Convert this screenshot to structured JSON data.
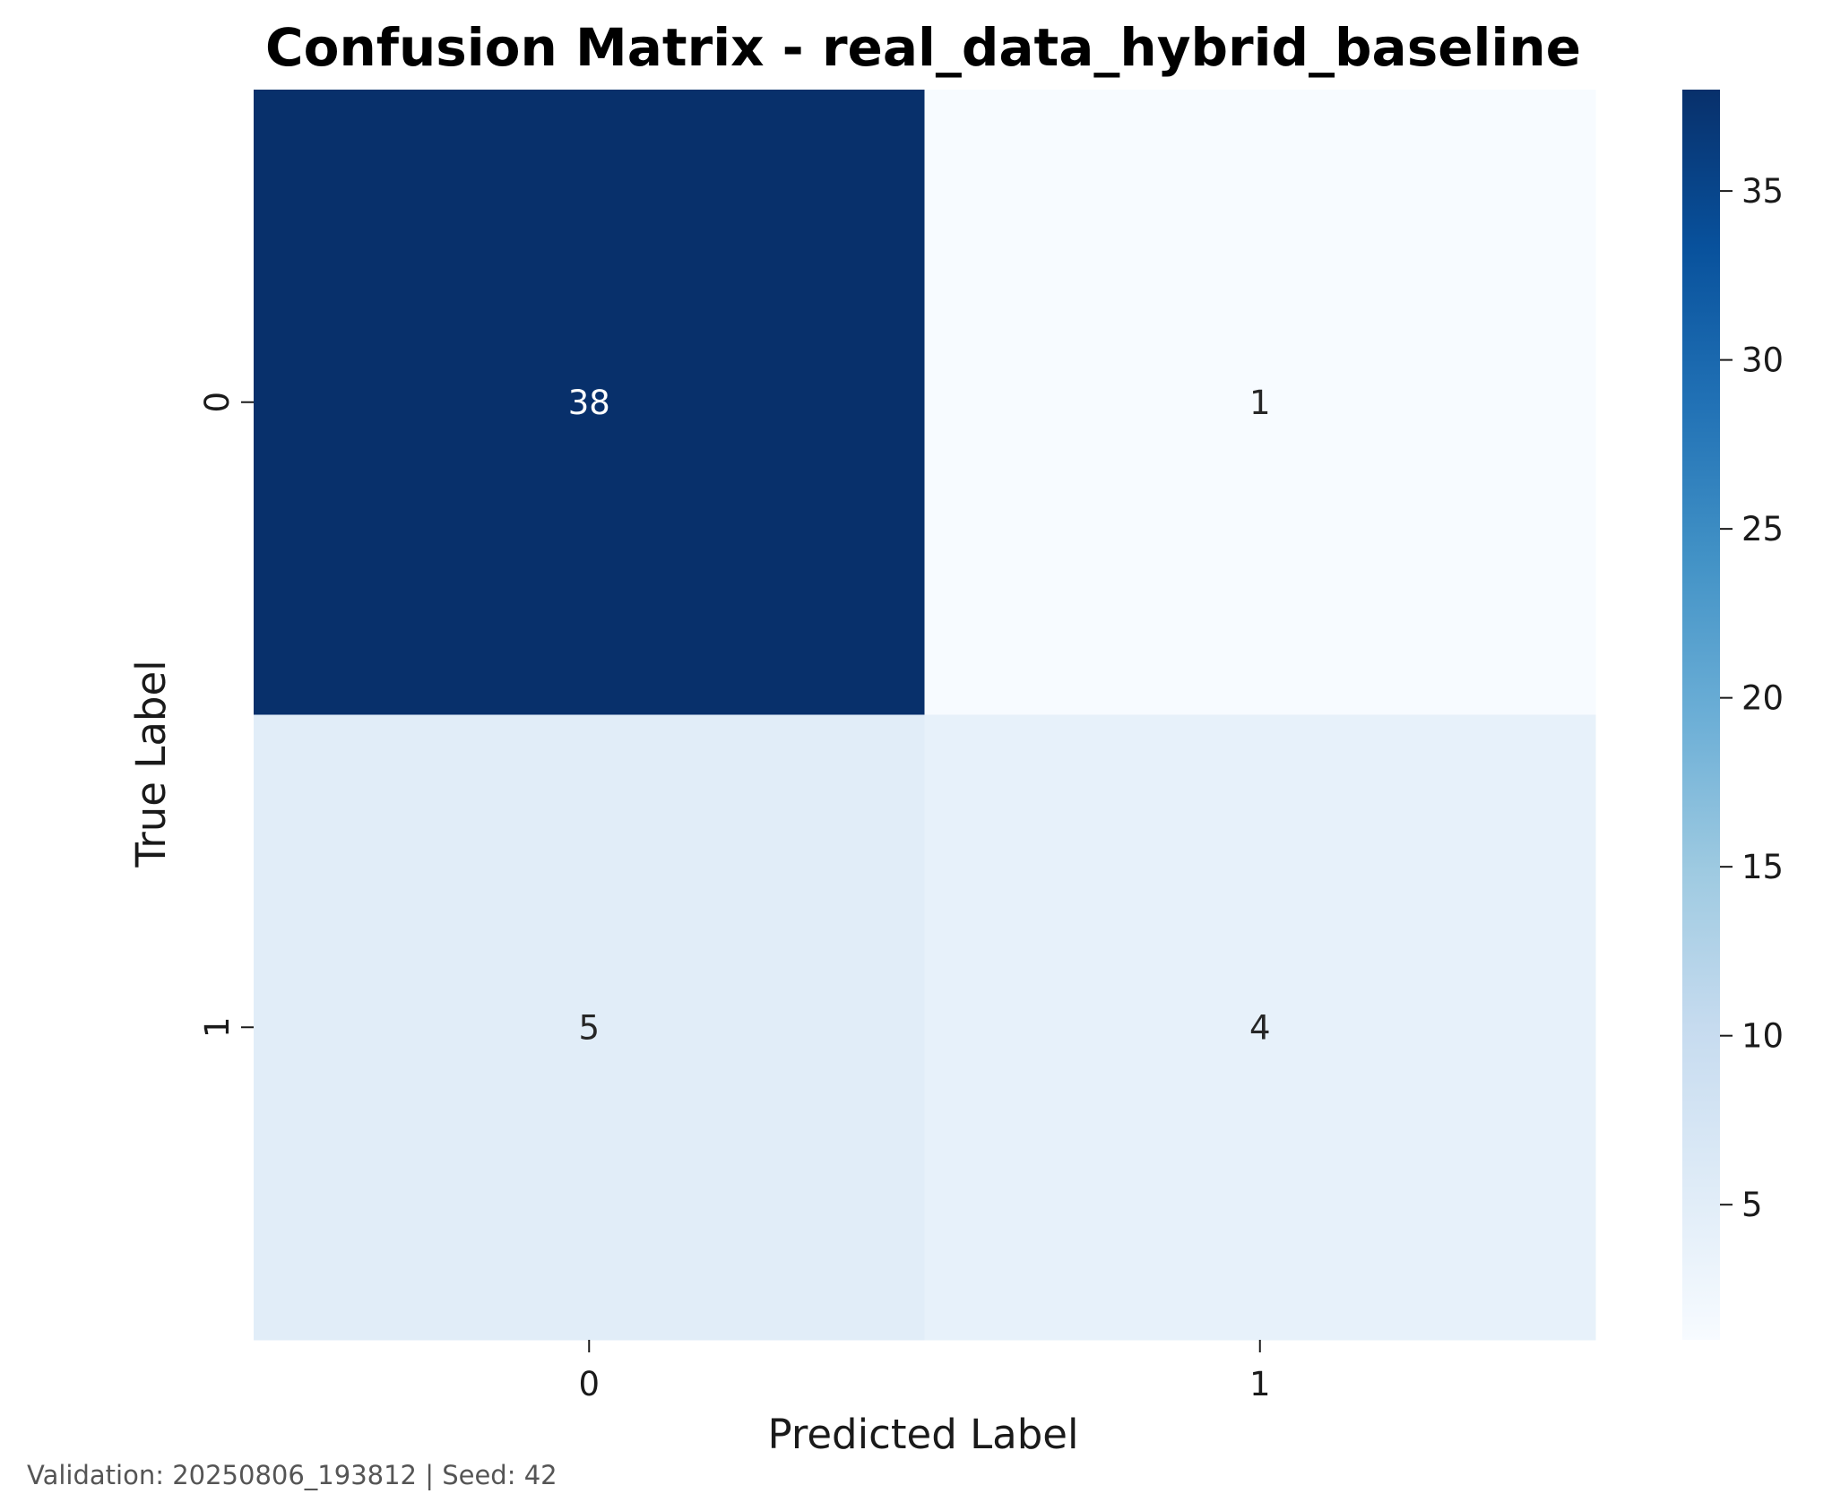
{
  "chart_data": {
    "type": "heatmap",
    "title": "Confusion Matrix - real_data_hybrid_baseline",
    "xlabel": "Predicted Label",
    "ylabel": "True Label",
    "x_categories": [
      "0",
      "1"
    ],
    "y_categories": [
      "0",
      "1"
    ],
    "values": [
      [
        38,
        1
      ],
      [
        5,
        4
      ]
    ],
    "colormap": "Blues",
    "colorbar": {
      "range": [
        1,
        38
      ],
      "ticks": [
        5,
        10,
        15,
        20,
        25,
        30,
        35
      ],
      "tick_labels": [
        "5",
        "10",
        "15",
        "20",
        "25",
        "30",
        "35"
      ],
      "placement": "right"
    },
    "grid": false,
    "annotations": true
  },
  "footer": {
    "text": "Validation: 20250806_193812 | Seed: 42"
  },
  "colors": {
    "dark_text": "#262626",
    "light_text": "#ffffff",
    "footer": "#555555"
  }
}
